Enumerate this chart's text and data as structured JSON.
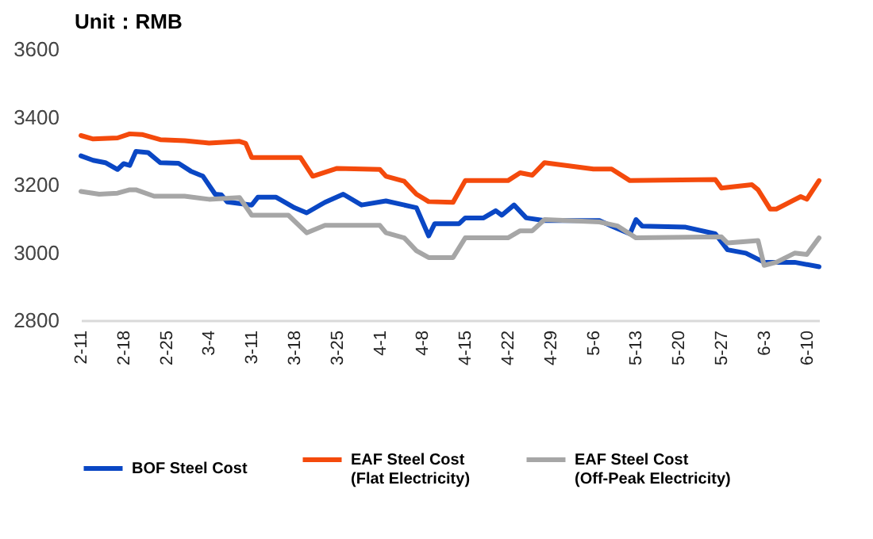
{
  "chart_data": {
    "type": "line",
    "title": "Unit：RMB",
    "ylim": [
      2800,
      3600
    ],
    "yticks": [
      2800,
      3000,
      3200,
      3400,
      3600
    ],
    "xlim": [
      "--02-11",
      "--06-12"
    ],
    "xticks": [
      {
        "value": "--02-11",
        "label": "2-11"
      },
      {
        "value": "--02-18",
        "label": "2-18"
      },
      {
        "value": "--02-25",
        "label": "2-25"
      },
      {
        "value": "--03-04",
        "label": "3-4"
      },
      {
        "value": "--03-11",
        "label": "3-11"
      },
      {
        "value": "--03-18",
        "label": "3-18"
      },
      {
        "value": "--03-25",
        "label": "3-25"
      },
      {
        "value": "--04-01",
        "label": "4-1"
      },
      {
        "value": "--04-08",
        "label": "4-8"
      },
      {
        "value": "--04-15",
        "label": "4-15"
      },
      {
        "value": "--04-22",
        "label": "4-22"
      },
      {
        "value": "--04-29",
        "label": "4-29"
      },
      {
        "value": "--05-06",
        "label": "5-6"
      },
      {
        "value": "--05-13",
        "label": "5-13"
      },
      {
        "value": "--05-20",
        "label": "5-20"
      },
      {
        "value": "--05-27",
        "label": "5-27"
      },
      {
        "value": "--06-03",
        "label": "6-3"
      },
      {
        "value": "--06-10",
        "label": "6-10"
      }
    ],
    "grid": false,
    "legend": "bottom",
    "series": [
      {
        "name": "BOF Steel Cost",
        "color": "#0a47c4",
        "x": [
          "--02-11",
          "--02-13",
          "--02-15",
          "--02-17",
          "--02-18",
          "--02-19",
          "--02-20",
          "--02-22",
          "--02-24",
          "--02-27",
          "--03-01",
          "--03-03",
          "--03-05",
          "--03-06",
          "--03-07",
          "--03-11",
          "--03-12",
          "--03-15",
          "--03-18",
          "--03-20",
          "--03-23",
          "--03-26",
          "--03-29",
          "--04-02",
          "--04-07",
          "--04-09",
          "--04-10",
          "--04-14",
          "--04-15",
          "--04-18",
          "--04-20",
          "--04-21",
          "--04-23",
          "--04-25",
          "--04-28",
          "--05-07",
          "--05-09",
          "--05-12",
          "--05-13",
          "--05-14",
          "--05-21",
          "--05-26",
          "--05-28",
          "--05-31",
          "--06-03",
          "--06-08",
          "--06-12"
        ],
        "values": [
          3285,
          3272,
          3265,
          3245,
          3262,
          3257,
          3298,
          3295,
          3265,
          3263,
          3240,
          3225,
          3172,
          3170,
          3149,
          3140,
          3163,
          3163,
          3132,
          3117,
          3148,
          3172,
          3140,
          3152,
          3132,
          3049,
          3085,
          3085,
          3102,
          3102,
          3123,
          3110,
          3140,
          3102,
          3094,
          3094,
          3078,
          3055,
          3097,
          3078,
          3075,
          3055,
          3008,
          2998,
          2971,
          2971,
          2958
        ]
      },
      {
        "name": "EAF Steel Cost (Flat Electricity)",
        "color": "#f44a0c",
        "x": [
          "--02-11",
          "--02-13",
          "--02-17",
          "--02-19",
          "--02-21",
          "--02-24",
          "--02-28",
          "--03-04",
          "--03-09",
          "--03-10",
          "--03-11",
          "--03-19",
          "--03-21",
          "--03-25",
          "--04-01",
          "--04-02",
          "--04-05",
          "--04-07",
          "--04-09",
          "--04-13",
          "--04-15",
          "--04-22",
          "--04-24",
          "--04-26",
          "--04-28",
          "--05-06",
          "--05-09",
          "--05-12",
          "--05-26",
          "--05-27",
          "--06-01",
          "--06-02",
          "--06-04",
          "--06-05",
          "--06-09",
          "--06-10",
          "--06-12"
        ],
        "values": [
          3345,
          3335,
          3338,
          3350,
          3348,
          3333,
          3330,
          3323,
          3328,
          3322,
          3280,
          3280,
          3225,
          3248,
          3245,
          3225,
          3210,
          3172,
          3150,
          3148,
          3212,
          3212,
          3235,
          3228,
          3265,
          3246,
          3246,
          3212,
          3215,
          3190,
          3200,
          3185,
          3128,
          3128,
          3165,
          3157,
          3212
        ]
      },
      {
        "name": "EAF Steel Cost (Off-Peak Electricity)",
        "color": "#a6a6a6",
        "x": [
          "--02-11",
          "--02-14",
          "--02-17",
          "--02-19",
          "--02-20",
          "--02-23",
          "--02-28",
          "--03-04",
          "--03-09",
          "--03-11",
          "--03-17",
          "--03-20",
          "--03-23",
          "--04-01",
          "--04-02",
          "--04-05",
          "--04-07",
          "--04-09",
          "--04-13",
          "--04-15",
          "--04-22",
          "--04-24",
          "--04-26",
          "--04-28",
          "--05-07",
          "--05-10",
          "--05-13",
          "--05-27",
          "--05-28",
          "--06-02",
          "--06-03",
          "--06-05",
          "--06-08",
          "--06-10",
          "--06-12"
        ],
        "values": [
          3180,
          3172,
          3175,
          3185,
          3185,
          3166,
          3166,
          3157,
          3162,
          3110,
          3110,
          3058,
          3080,
          3080,
          3058,
          3043,
          3005,
          2985,
          2985,
          3043,
          3043,
          3064,
          3064,
          3097,
          3090,
          3078,
          3043,
          3046,
          3028,
          3035,
          2962,
          2971,
          2998,
          2994,
          3043
        ]
      }
    ]
  }
}
